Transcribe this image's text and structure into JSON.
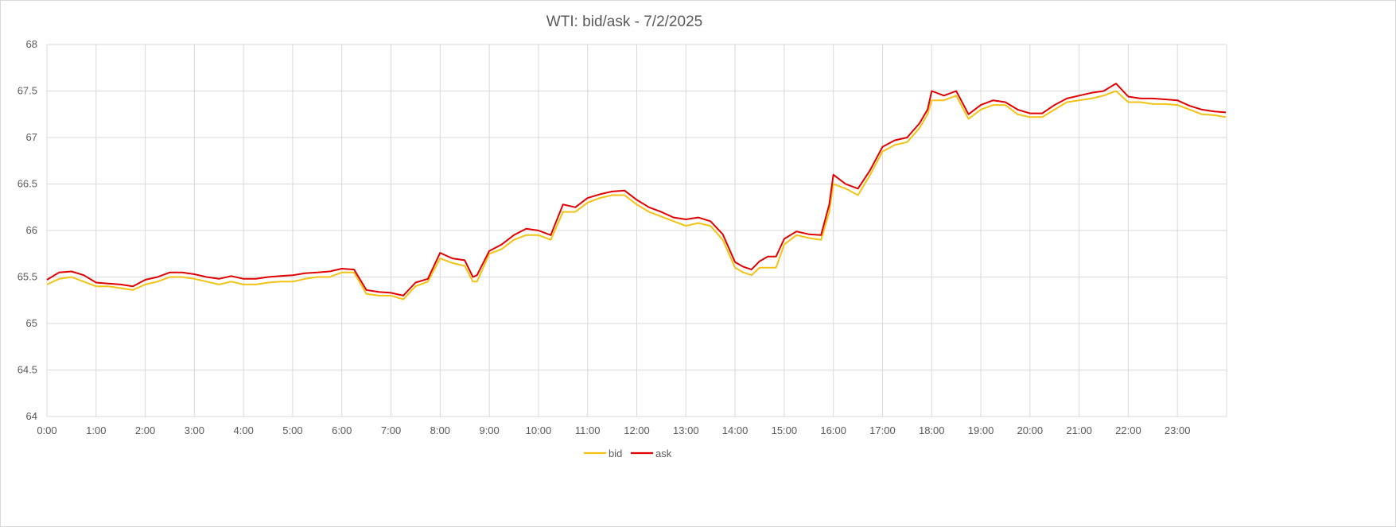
{
  "chart_data": {
    "type": "line",
    "title": "WTI: bid/ask - 7/2/2025",
    "xlabel": "",
    "ylabel": "",
    "ylim": [
      64,
      68
    ],
    "yticks": [
      "64",
      "64.5",
      "65",
      "65.5",
      "66",
      "66.5",
      "67",
      "67.5",
      "68"
    ],
    "xlim": [
      "0:00",
      "24:00"
    ],
    "xticks": [
      "0:00",
      "1:00",
      "2:00",
      "3:00",
      "4:00",
      "5:00",
      "6:00",
      "7:00",
      "8:00",
      "9:00",
      "10:00",
      "11:00",
      "12:00",
      "13:00",
      "14:00",
      "15:00",
      "16:00",
      "17:00",
      "18:00",
      "19:00",
      "20:00",
      "21:00",
      "22:00",
      "23:00"
    ],
    "grid": true,
    "legend_position": "bottom",
    "series": [
      {
        "name": "bid",
        "color": "#f2c214",
        "x": [
          "0:00",
          "0:15",
          "0:30",
          "0:45",
          "1:00",
          "1:15",
          "1:30",
          "1:45",
          "2:00",
          "2:15",
          "2:30",
          "2:45",
          "3:00",
          "3:15",
          "3:30",
          "3:45",
          "4:00",
          "4:15",
          "4:30",
          "4:45",
          "5:00",
          "5:15",
          "5:30",
          "5:45",
          "6:00",
          "6:15",
          "6:30",
          "6:45",
          "7:00",
          "7:15",
          "7:30",
          "7:45",
          "8:00",
          "8:15",
          "8:30",
          "8:40",
          "8:45",
          "9:00",
          "9:15",
          "9:30",
          "9:45",
          "10:00",
          "10:15",
          "10:30",
          "10:45",
          "11:00",
          "11:15",
          "11:30",
          "11:45",
          "12:00",
          "12:15",
          "12:30",
          "12:45",
          "13:00",
          "13:15",
          "13:30",
          "13:45",
          "14:00",
          "14:10",
          "14:20",
          "14:30",
          "14:40",
          "14:50",
          "15:00",
          "15:15",
          "15:30",
          "15:45",
          "15:55",
          "16:00",
          "16:15",
          "16:30",
          "16:45",
          "17:00",
          "17:15",
          "17:30",
          "17:45",
          "17:55",
          "18:00",
          "18:15",
          "18:30",
          "18:45",
          "19:00",
          "19:15",
          "19:30",
          "19:45",
          "20:00",
          "20:15",
          "20:30",
          "20:45",
          "21:00",
          "21:15",
          "21:30",
          "21:45",
          "22:00",
          "22:15",
          "22:30",
          "22:45",
          "23:00",
          "23:15",
          "23:30",
          "23:45",
          "23:59"
        ],
        "values": [
          65.42,
          65.48,
          65.5,
          65.45,
          65.4,
          65.4,
          65.38,
          65.36,
          65.42,
          65.45,
          65.5,
          65.5,
          65.48,
          65.45,
          65.42,
          65.45,
          65.42,
          65.42,
          65.44,
          65.45,
          65.45,
          65.48,
          65.5,
          65.5,
          65.55,
          65.55,
          65.32,
          65.3,
          65.3,
          65.26,
          65.4,
          65.45,
          65.7,
          65.65,
          65.62,
          65.45,
          65.45,
          65.75,
          65.8,
          65.9,
          65.95,
          65.95,
          65.9,
          66.2,
          66.2,
          66.3,
          66.35,
          66.38,
          66.38,
          66.28,
          66.2,
          66.15,
          66.1,
          66.05,
          66.08,
          66.05,
          65.9,
          65.6,
          65.55,
          65.52,
          65.6,
          65.6,
          65.6,
          65.85,
          65.95,
          65.92,
          65.9,
          66.2,
          66.5,
          66.45,
          66.38,
          66.6,
          66.85,
          66.92,
          66.95,
          67.1,
          67.25,
          67.4,
          67.4,
          67.45,
          67.2,
          67.3,
          67.35,
          67.35,
          67.25,
          67.22,
          67.22,
          67.3,
          67.38,
          67.4,
          67.42,
          67.45,
          67.5,
          67.38,
          67.38,
          67.36,
          67.36,
          67.35,
          67.3,
          67.25,
          67.24,
          67.22
        ]
      },
      {
        "name": "ask",
        "color": "#e00000",
        "x": [
          "0:00",
          "0:15",
          "0:30",
          "0:45",
          "1:00",
          "1:15",
          "1:30",
          "1:45",
          "2:00",
          "2:15",
          "2:30",
          "2:45",
          "3:00",
          "3:15",
          "3:30",
          "3:45",
          "4:00",
          "4:15",
          "4:30",
          "4:45",
          "5:00",
          "5:15",
          "5:30",
          "5:45",
          "6:00",
          "6:15",
          "6:30",
          "6:45",
          "7:00",
          "7:15",
          "7:30",
          "7:45",
          "8:00",
          "8:15",
          "8:30",
          "8:40",
          "8:45",
          "9:00",
          "9:15",
          "9:30",
          "9:45",
          "10:00",
          "10:15",
          "10:30",
          "10:45",
          "11:00",
          "11:15",
          "11:30",
          "11:45",
          "12:00",
          "12:15",
          "12:30",
          "12:45",
          "13:00",
          "13:15",
          "13:30",
          "13:45",
          "14:00",
          "14:10",
          "14:20",
          "14:30",
          "14:40",
          "14:50",
          "15:00",
          "15:15",
          "15:30",
          "15:45",
          "15:55",
          "16:00",
          "16:15",
          "16:30",
          "16:45",
          "17:00",
          "17:15",
          "17:30",
          "17:45",
          "17:55",
          "18:00",
          "18:15",
          "18:30",
          "18:45",
          "19:00",
          "19:15",
          "19:30",
          "19:45",
          "20:00",
          "20:15",
          "20:30",
          "20:45",
          "21:00",
          "21:15",
          "21:30",
          "21:45",
          "22:00",
          "22:15",
          "22:30",
          "22:45",
          "23:00",
          "23:15",
          "23:30",
          "23:45",
          "23:59"
        ],
        "values": [
          65.47,
          65.55,
          65.56,
          65.52,
          65.44,
          65.43,
          65.42,
          65.4,
          65.47,
          65.5,
          65.55,
          65.55,
          65.53,
          65.5,
          65.48,
          65.51,
          65.48,
          65.48,
          65.5,
          65.51,
          65.52,
          65.54,
          65.55,
          65.56,
          65.59,
          65.58,
          65.36,
          65.34,
          65.33,
          65.3,
          65.44,
          65.48,
          65.76,
          65.7,
          65.68,
          65.5,
          65.52,
          65.78,
          65.85,
          65.95,
          66.02,
          66.0,
          65.95,
          66.28,
          66.25,
          66.35,
          66.39,
          66.42,
          66.43,
          66.33,
          66.25,
          66.2,
          66.14,
          66.12,
          66.14,
          66.1,
          65.96,
          65.66,
          65.61,
          65.58,
          65.67,
          65.72,
          65.72,
          65.91,
          65.99,
          65.96,
          65.95,
          66.28,
          66.6,
          66.5,
          66.45,
          66.65,
          66.9,
          66.97,
          67.0,
          67.15,
          67.3,
          67.5,
          67.45,
          67.5,
          67.25,
          67.35,
          67.4,
          67.38,
          67.3,
          67.26,
          67.26,
          67.35,
          67.42,
          67.45,
          67.48,
          67.5,
          67.58,
          67.44,
          67.42,
          67.42,
          67.41,
          67.4,
          67.34,
          67.3,
          67.28,
          67.27
        ]
      }
    ]
  }
}
